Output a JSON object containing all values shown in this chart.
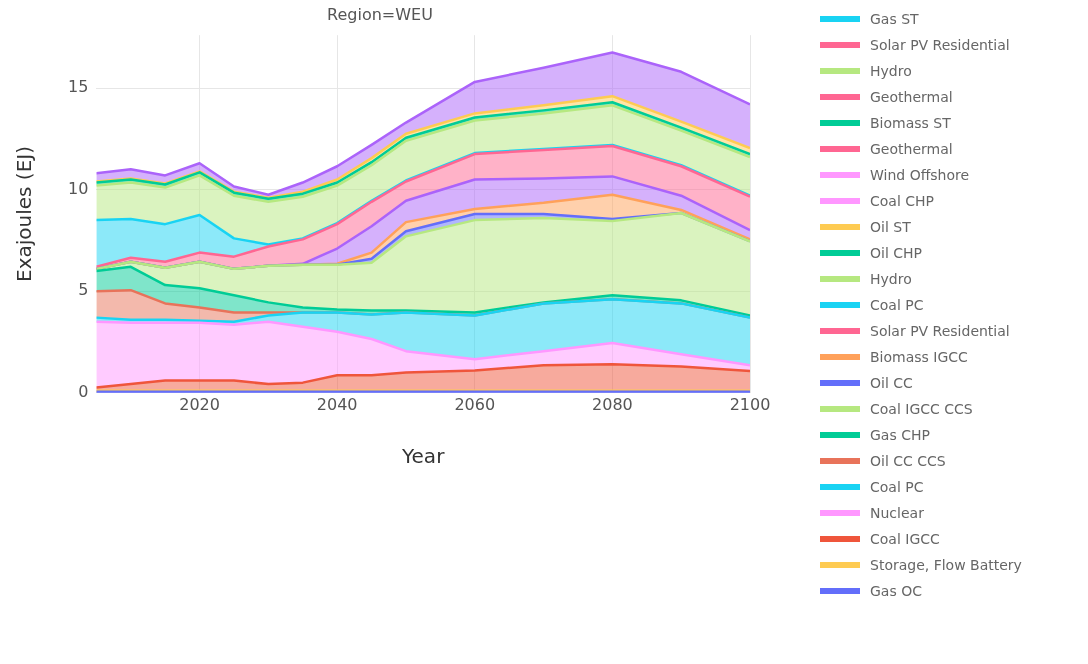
{
  "chart_data": {
    "type": "area",
    "stacked": true,
    "title": "Region=WEU",
    "xlabel": "Year",
    "ylabel": "Exajoules (EJ)",
    "x": [
      2005,
      2010,
      2015,
      2020,
      2025,
      2030,
      2035,
      2040,
      2045,
      2050,
      2060,
      2070,
      2080,
      2090,
      2100
    ],
    "xlim": [
      2005,
      2100
    ],
    "xticks": [
      2020,
      2040,
      2060,
      2080,
      2100
    ],
    "ylim": [
      0,
      17.6
    ],
    "yticks": [
      0,
      5,
      10,
      15
    ],
    "grid": true,
    "legend": "right",
    "marker": "none",
    "series": [
      {
        "name": "Gas OC",
        "color": "#636efa",
        "values": [
          0.05,
          0.05,
          0.05,
          0.05,
          0.05,
          0.05,
          0.05,
          0.05,
          0.05,
          0.05,
          0.05,
          0.05,
          0.05,
          0.05,
          0.05
        ]
      },
      {
        "name": "Storage, Flow Battery",
        "color": "#fecb52",
        "values": [
          0.05,
          0.05,
          0.05,
          0.05,
          0.05,
          0.05,
          0.05,
          0.05,
          0.05,
          0.05,
          0.05,
          0.05,
          0.05,
          0.05,
          0.05
        ]
      },
      {
        "name": "Coal IGCC",
        "color": "#ef553b",
        "values": [
          0.16,
          0.33,
          0.5,
          0.5,
          0.5,
          0.33,
          0.4,
          0.76,
          0.76,
          0.9,
          1.0,
          1.25,
          1.3,
          1.2,
          0.97
        ]
      },
      {
        "name": "Nuclear",
        "color": "#ff97ff",
        "values": [
          3.24,
          3.02,
          2.85,
          2.85,
          2.75,
          3.07,
          2.75,
          2.14,
          1.79,
          1.05,
          0.55,
          0.7,
          1.05,
          0.6,
          0.28
        ]
      },
      {
        "name": "Coal PC",
        "color": "#19d3f3",
        "values": [
          0.2,
          0.15,
          0.15,
          0.1,
          0.15,
          0.3,
          0.7,
          0.95,
          1.2,
          1.9,
          2.15,
          2.35,
          2.15,
          2.5,
          2.35
        ]
      },
      {
        "name": "Oil CC CCS",
        "color": "#e8735a",
        "values": [
          1.3,
          1.45,
          0.8,
          0.65,
          0.45,
          0.15,
          0,
          0,
          0,
          0,
          0,
          0,
          0,
          0,
          0
        ]
      },
      {
        "name": "Gas CHP",
        "color": "#00cc96",
        "values": [
          1.0,
          1.15,
          0.9,
          0.95,
          0.85,
          0.5,
          0.25,
          0.15,
          0.2,
          0.1,
          0.15,
          0.05,
          0.2,
          0.15,
          0.1
        ]
      },
      {
        "name": "Coal IGCC CCS",
        "color": "#b6e880",
        "values": [
          0.1,
          0.25,
          0.85,
          1.3,
          1.3,
          1.8,
          2.1,
          2.2,
          2.35,
          3.65,
          4.55,
          4.15,
          3.65,
          4.3,
          3.65
        ]
      },
      {
        "name": "Oil CC",
        "color": "#636efa",
        "values": [
          0,
          0,
          0,
          0,
          0,
          0,
          0,
          0,
          0.2,
          0.25,
          0.3,
          0.2,
          0.1,
          0,
          0
        ]
      },
      {
        "name": "Biomass IGCC",
        "color": "#ffa15a",
        "values": [
          0,
          0,
          0,
          0,
          0,
          0,
          0,
          0.05,
          0.3,
          0.45,
          0.25,
          0.55,
          1.2,
          0.15,
          0.1
        ]
      },
      {
        "color": "#ab63fa",
        "values": [
          0,
          0,
          0,
          0,
          0,
          0,
          0.05,
          0.75,
          1.3,
          1.05,
          1.45,
          1.2,
          0.9,
          0.7,
          0.45
        ]
      },
      {
        "name": "Solar PV Residential",
        "color": "#ff6692",
        "values": [
          0.1,
          0.2,
          0.3,
          0.45,
          0.6,
          0.95,
          1.2,
          1.2,
          1.2,
          0.95,
          1.25,
          1.4,
          1.5,
          1.45,
          1.65
        ]
      },
      {
        "name": "Coal PC",
        "color": "#19d3f3",
        "values": [
          2.3,
          1.9,
          1.85,
          1.85,
          0.9,
          0.1,
          0.05,
          0.05,
          0.05,
          0.05,
          0.05,
          0.05,
          0.05,
          0.05,
          0.05
        ]
      },
      {
        "name": "Hydro",
        "color": "#b6e880",
        "values": [
          1.7,
          1.8,
          1.8,
          1.95,
          2.1,
          2.1,
          2.05,
          1.85,
          1.75,
          1.95,
          1.6,
          1.75,
          1.95,
          1.7,
          1.9
        ]
      },
      {
        "name": "Oil CHP",
        "color": "#00cc96",
        "values": [
          0.15,
          0.15,
          0.15,
          0.15,
          0.15,
          0.15,
          0.15,
          0.15,
          0.15,
          0.15,
          0.15,
          0.15,
          0.15,
          0.15,
          0.15
        ]
      },
      {
        "name": "Oil ST",
        "color": "#fecb52",
        "values": [
          0.05,
          0.05,
          0.05,
          0.05,
          0.05,
          0.05,
          0.1,
          0.15,
          0.2,
          0.2,
          0.2,
          0.25,
          0.3,
          0.3,
          0.3
        ]
      },
      {
        "color": "#ab63fa",
        "values": [
          0.4,
          0.45,
          0.4,
          0.4,
          0.25,
          0.15,
          0.45,
          0.65,
          0.65,
          0.55,
          1.55,
          1.85,
          2.15,
          2.45,
          2.15
        ]
      },
      {
        "name": "Coal CHP",
        "color": "#ff97ff",
        "values": [
          null,
          null,
          null,
          null,
          null,
          null,
          null,
          null,
          null,
          null,
          null,
          null,
          null,
          null,
          null
        ]
      },
      {
        "name": "Wind Offshore",
        "color": "#ff97ff",
        "values": [
          null,
          null,
          null,
          null,
          null,
          null,
          null,
          null,
          null,
          null,
          null,
          null,
          null,
          null,
          null
        ]
      },
      {
        "name": "Geothermal",
        "color": "#ff6692",
        "values": [
          null,
          null,
          null,
          null,
          null,
          null,
          null,
          null,
          null,
          null,
          null,
          null,
          null,
          null,
          null
        ]
      },
      {
        "name": "Biomass ST",
        "color": "#00cc96",
        "values": [
          null,
          null,
          null,
          null,
          null,
          null,
          null,
          null,
          null,
          null,
          null,
          null,
          null,
          null,
          null
        ]
      },
      {
        "name": "Geothermal",
        "color": "#ff6692",
        "values": [
          null,
          null,
          null,
          null,
          null,
          null,
          null,
          null,
          null,
          null,
          null,
          null,
          null,
          null,
          null
        ]
      },
      {
        "name": "Hydro",
        "color": "#b6e880",
        "values": [
          null,
          null,
          null,
          null,
          null,
          null,
          null,
          null,
          null,
          null,
          null,
          null,
          null,
          null,
          null
        ]
      },
      {
        "name": "Solar PV Residential",
        "color": "#ff6692",
        "values": [
          null,
          null,
          null,
          null,
          null,
          null,
          null,
          null,
          null,
          null,
          null,
          null,
          null,
          null,
          null
        ]
      },
      {
        "name": "Gas ST",
        "color": "#19d3f3",
        "values": [
          null,
          null,
          null,
          null,
          null,
          null,
          null,
          null,
          null,
          null,
          null,
          null,
          null,
          null,
          null
        ]
      }
    ]
  }
}
